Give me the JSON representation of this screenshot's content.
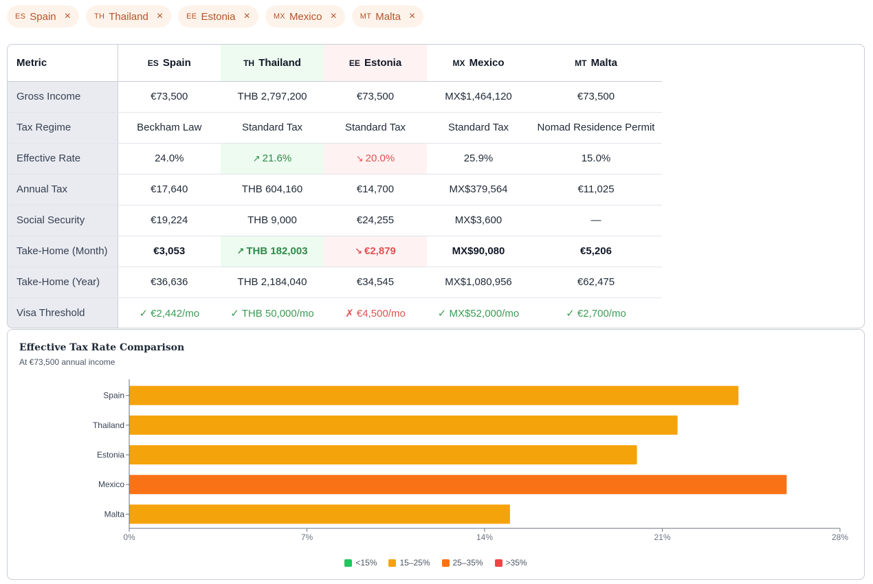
{
  "chips": [
    {
      "code": "ES",
      "name": "Spain",
      "remove": "×"
    },
    {
      "code": "TH",
      "name": "Thailand",
      "remove": "×"
    },
    {
      "code": "EE",
      "name": "Estonia",
      "remove": "×"
    },
    {
      "code": "MX",
      "name": "Mexico",
      "remove": "×"
    },
    {
      "code": "MT",
      "name": "Malta",
      "remove": "×"
    }
  ],
  "table": {
    "metric_header": "Metric",
    "countries": [
      {
        "code": "ES",
        "name": "Spain"
      },
      {
        "code": "TH",
        "name": "Thailand"
      },
      {
        "code": "EE",
        "name": "Estonia"
      },
      {
        "code": "MX",
        "name": "Mexico"
      },
      {
        "code": "MT",
        "name": "Malta"
      }
    ],
    "rows": [
      {
        "label": "Gross Income",
        "values": [
          "€73,500",
          "THB 2,797,200",
          "€73,500",
          "MX$1,464,120",
          "€73,500"
        ]
      },
      {
        "label": "Tax Regime",
        "values": [
          "Beckham Law",
          "Standard Tax",
          "Standard Tax",
          "Standard Tax",
          "Nomad Residence Permit"
        ]
      },
      {
        "label": "Effective Rate",
        "values": [
          "24.0%",
          "21.6%",
          "20.0%",
          "25.9%",
          "15.0%"
        ]
      },
      {
        "label": "Annual Tax",
        "values": [
          "€17,640",
          "THB 604,160",
          "€14,700",
          "MX$379,564",
          "€11,025"
        ]
      },
      {
        "label": "Social Security",
        "values": [
          "€19,224",
          "THB 9,000",
          "€24,255",
          "MX$3,600",
          "—"
        ]
      },
      {
        "label": "Take-Home (Month)",
        "values": [
          "€3,053",
          "THB 182,003",
          "€2,879",
          "MX$90,080",
          "€5,206"
        ]
      },
      {
        "label": "Take-Home (Year)",
        "values": [
          "€36,636",
          "THB 2,184,040",
          "€34,545",
          "MX$1,080,956",
          "€62,475"
        ]
      },
      {
        "label": "Visa Threshold",
        "values": [
          "✓ €2,442/mo",
          "✓ THB 50,000/mo",
          "✗ €4,500/mo",
          "✓ MX$52,000/mo",
          "✓ €2,700/mo"
        ]
      }
    ],
    "arrow_up": "↗",
    "arrow_down": "↘"
  },
  "chart": {
    "title": "Effective Tax Rate Comparison",
    "subtitle": "At €73,500 annual income",
    "legend": [
      {
        "label": "<15%",
        "color": "#22c55e"
      },
      {
        "label": "15–25%",
        "color": "#f5a30b"
      },
      {
        "label": "25–35%",
        "color": "#f97316"
      },
      {
        "label": ">35%",
        "color": "#ef4444"
      }
    ]
  },
  "chart_data": {
    "type": "bar",
    "orientation": "horizontal",
    "categories": [
      "Spain",
      "Thailand",
      "Estonia",
      "Mexico",
      "Malta"
    ],
    "values": [
      24.0,
      21.6,
      20.0,
      25.9,
      15.0
    ],
    "colors": [
      "#f5a30b",
      "#f5a30b",
      "#f5a30b",
      "#f97316",
      "#f5a30b"
    ],
    "xlim": [
      0,
      28
    ],
    "xticks": [
      "0%",
      "7%",
      "14%",
      "21%",
      "28%"
    ],
    "xtick_values": [
      0,
      7,
      14,
      21,
      28
    ],
    "grid": false
  }
}
